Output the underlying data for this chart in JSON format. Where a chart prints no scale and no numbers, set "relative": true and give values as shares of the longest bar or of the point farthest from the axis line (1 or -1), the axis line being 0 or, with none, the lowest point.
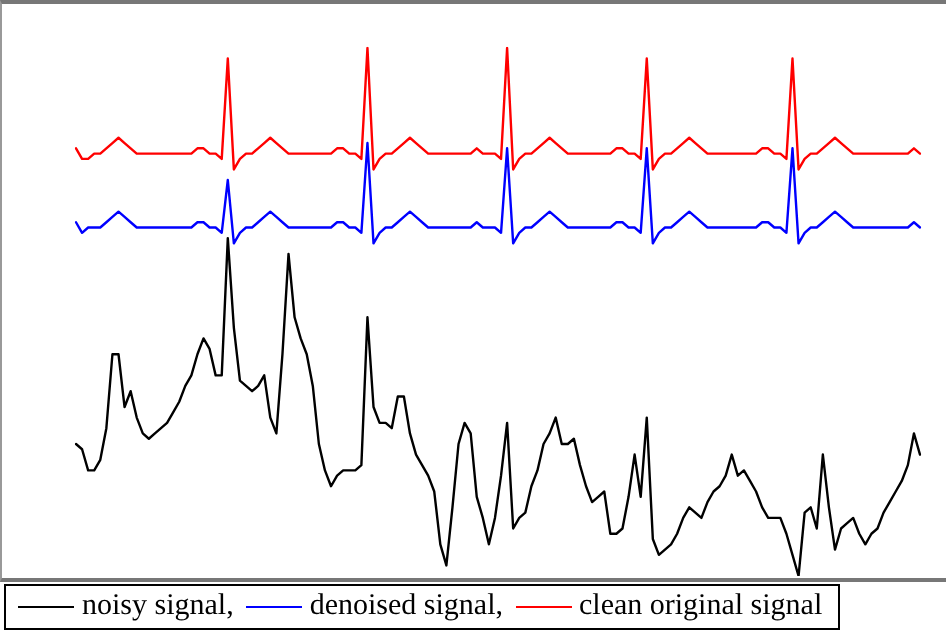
{
  "chart_data": {
    "type": "line",
    "relative": true,
    "legend": "bottom left",
    "grid": false,
    "marker": "none",
    "line_style": "solid",
    "categories": [
      null,
      null,
      null,
      null,
      null,
      null,
      null,
      null,
      null,
      null,
      null,
      null,
      null,
      null,
      null,
      null,
      null,
      null,
      null,
      null,
      null,
      null,
      null,
      null,
      null,
      null,
      null,
      null,
      null,
      null,
      null,
      null,
      null,
      null,
      null,
      null,
      null,
      null,
      null,
      null,
      null,
      null,
      null,
      null,
      null,
      null,
      null,
      null,
      null,
      null,
      null,
      null,
      null,
      null,
      null,
      null,
      null,
      null,
      null,
      null,
      null,
      null,
      null,
      null,
      null,
      null,
      null,
      null,
      null,
      null,
      null,
      null,
      null,
      null,
      null,
      null,
      null,
      null,
      null,
      null,
      null,
      null,
      null,
      null,
      null,
      null,
      null,
      null,
      null,
      null,
      null,
      null,
      null,
      null,
      null,
      null,
      null,
      null,
      null,
      null,
      null,
      null,
      null,
      null,
      null,
      null,
      null,
      null,
      null,
      null,
      null,
      null,
      null,
      null,
      null,
      null,
      null,
      null,
      null,
      null,
      null,
      null,
      null,
      null,
      null,
      null,
      null,
      null,
      null,
      null,
      null,
      null,
      null,
      null,
      null,
      null,
      null,
      null,
      null,
      null
    ],
    "series": [
      {
        "name": "noisy signal,",
        "color": "#000000",
        "values": [
          0.25,
          0.24,
          0.2,
          0.2,
          0.22,
          0.28,
          0.42,
          0.42,
          0.32,
          0.35,
          0.3,
          0.27,
          0.26,
          0.27,
          0.28,
          0.29,
          0.31,
          0.33,
          0.36,
          0.38,
          0.42,
          0.45,
          0.43,
          0.38,
          0.38,
          0.64,
          0.47,
          0.37,
          0.36,
          0.35,
          0.36,
          0.38,
          0.3,
          0.27,
          0.42,
          0.61,
          0.49,
          0.45,
          0.42,
          0.36,
          0.25,
          0.2,
          0.17,
          0.19,
          0.2,
          0.2,
          0.2,
          0.21,
          0.49,
          0.32,
          0.29,
          0.29,
          0.28,
          0.34,
          0.34,
          0.27,
          0.23,
          0.21,
          0.19,
          0.16,
          0.06,
          0.02,
          0.13,
          0.25,
          0.29,
          0.27,
          0.15,
          0.11,
          0.06,
          0.11,
          0.19,
          0.29,
          0.09,
          0.11,
          0.12,
          0.17,
          0.2,
          0.25,
          0.27,
          0.3,
          0.25,
          0.25,
          0.26,
          0.21,
          0.17,
          0.14,
          0.15,
          0.16,
          0.08,
          0.08,
          0.09,
          0.15,
          0.23,
          0.15,
          0.3,
          0.07,
          0.04,
          0.05,
          0.06,
          0.08,
          0.11,
          0.13,
          0.12,
          0.11,
          0.14,
          0.16,
          0.17,
          0.19,
          0.23,
          0.19,
          0.2,
          0.18,
          0.16,
          0.13,
          0.11,
          0.11,
          0.11,
          0.08,
          0.04,
          0,
          0.12,
          0.13,
          0.09,
          0.23,
          0.13,
          0.05,
          0.09,
          0.1,
          0.11,
          0.08,
          0.06,
          0.08,
          0.09,
          0.12,
          0.14,
          0.16,
          0.18,
          0.21,
          0.27,
          0.23
        ]
      },
      {
        "name": "denoised signal,",
        "color": "#0000ff",
        "values": [
          0.67,
          0.65,
          0.66,
          0.66,
          0.66,
          0.67,
          0.68,
          0.69,
          0.68,
          0.67,
          0.66,
          0.66,
          0.66,
          0.66,
          0.66,
          0.66,
          0.66,
          0.66,
          0.66,
          0.66,
          0.67,
          0.67,
          0.66,
          0.66,
          0.65,
          0.75,
          0.63,
          0.65,
          0.66,
          0.66,
          0.67,
          0.68,
          0.69,
          0.68,
          0.67,
          0.66,
          0.66,
          0.66,
          0.66,
          0.66,
          0.66,
          0.66,
          0.66,
          0.67,
          0.67,
          0.66,
          0.66,
          0.65,
          0.82,
          0.63,
          0.65,
          0.66,
          0.66,
          0.67,
          0.68,
          0.69,
          0.68,
          0.67,
          0.66,
          0.66,
          0.66,
          0.66,
          0.66,
          0.66,
          0.66,
          0.66,
          0.67,
          0.66,
          0.66,
          0.66,
          0.65,
          0.81,
          0.63,
          0.65,
          0.66,
          0.66,
          0.67,
          0.68,
          0.69,
          0.68,
          0.67,
          0.66,
          0.66,
          0.66,
          0.66,
          0.66,
          0.66,
          0.66,
          0.66,
          0.67,
          0.67,
          0.66,
          0.66,
          0.65,
          0.81,
          0.63,
          0.65,
          0.66,
          0.66,
          0.67,
          0.68,
          0.69,
          0.68,
          0.67,
          0.66,
          0.66,
          0.66,
          0.66,
          0.66,
          0.66,
          0.66,
          0.66,
          0.66,
          0.67,
          0.67,
          0.66,
          0.66,
          0.65,
          0.81,
          0.63,
          0.65,
          0.66,
          0.66,
          0.67,
          0.68,
          0.69,
          0.68,
          0.67,
          0.66,
          0.66,
          0.66,
          0.66,
          0.66,
          0.66,
          0.66,
          0.66,
          0.66,
          0.66,
          0.67,
          0.66
        ]
      },
      {
        "name": "clean original signal",
        "color": "#ff0000",
        "values": [
          0.81,
          0.79,
          0.79,
          0.8,
          0.8,
          0.81,
          0.82,
          0.83,
          0.82,
          0.81,
          0.8,
          0.8,
          0.8,
          0.8,
          0.8,
          0.8,
          0.8,
          0.8,
          0.8,
          0.8,
          0.81,
          0.81,
          0.8,
          0.8,
          0.79,
          0.98,
          0.77,
          0.79,
          0.8,
          0.8,
          0.81,
          0.82,
          0.83,
          0.82,
          0.81,
          0.8,
          0.8,
          0.8,
          0.8,
          0.8,
          0.8,
          0.8,
          0.8,
          0.81,
          0.81,
          0.8,
          0.8,
          0.79,
          1,
          0.77,
          0.79,
          0.8,
          0.8,
          0.81,
          0.82,
          0.83,
          0.82,
          0.81,
          0.8,
          0.8,
          0.8,
          0.8,
          0.8,
          0.8,
          0.8,
          0.8,
          0.81,
          0.8,
          0.8,
          0.8,
          0.79,
          1,
          0.77,
          0.79,
          0.8,
          0.8,
          0.81,
          0.82,
          0.83,
          0.82,
          0.81,
          0.8,
          0.8,
          0.8,
          0.8,
          0.8,
          0.8,
          0.8,
          0.8,
          0.81,
          0.81,
          0.8,
          0.8,
          0.79,
          0.98,
          0.77,
          0.79,
          0.8,
          0.8,
          0.81,
          0.82,
          0.83,
          0.82,
          0.81,
          0.8,
          0.8,
          0.8,
          0.8,
          0.8,
          0.8,
          0.8,
          0.8,
          0.8,
          0.81,
          0.81,
          0.8,
          0.8,
          0.79,
          0.98,
          0.77,
          0.79,
          0.8,
          0.8,
          0.81,
          0.82,
          0.83,
          0.82,
          0.81,
          0.8,
          0.8,
          0.8,
          0.8,
          0.8,
          0.8,
          0.8,
          0.8,
          0.8,
          0.8,
          0.81,
          0.8
        ]
      }
    ]
  }
}
